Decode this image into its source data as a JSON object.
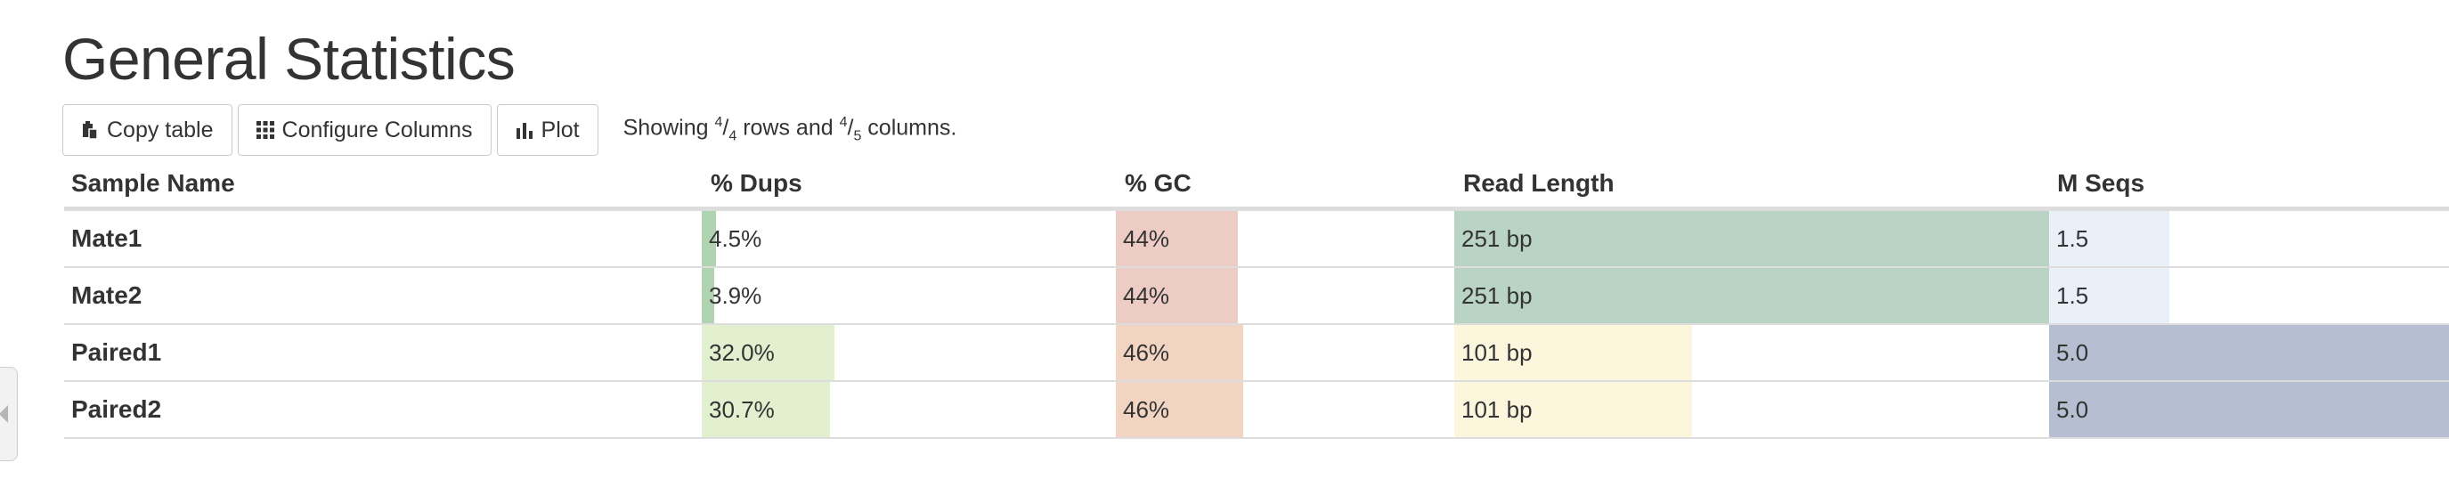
{
  "title": "General Statistics",
  "toolbar": {
    "copy_label": "Copy table",
    "configure_label": "Configure Columns",
    "plot_label": "Plot",
    "showing_prefix": "Showing ",
    "rows_num": "4",
    "rows_den": "4",
    "rows_mid": " rows and ",
    "cols_num": "4",
    "cols_den": "5",
    "cols_suffix": " columns."
  },
  "columns": {
    "sample": "Sample Name",
    "dups": "% Dups",
    "gc": "% GC",
    "readlen": "Read Length",
    "mseqs": "M Seqs"
  },
  "colors": {
    "dups": "#e2f0d0",
    "dups_small": "#b0d3b2",
    "gc_44": "#ecccc4",
    "gc_46": "#f2d4c2",
    "readlen_251": "#b9d3c5",
    "readlen_101": "#fcf7dc",
    "mseqs_15": "#e9f0f8",
    "mseqs_50": "#b5bfd1"
  },
  "rows": [
    {
      "name": "Mate1",
      "dups": "4.5%",
      "dups_frac": 0.035,
      "gc": "44%",
      "gc_frac": 0.36,
      "readlen": "251 bp",
      "readlen_frac": 1.0,
      "mseqs": "1.5",
      "mseqs_frac": 0.3
    },
    {
      "name": "Mate2",
      "dups": "3.9%",
      "dups_frac": 0.03,
      "gc": "44%",
      "gc_frac": 0.36,
      "readlen": "251 bp",
      "readlen_frac": 1.0,
      "mseqs": "1.5",
      "mseqs_frac": 0.3
    },
    {
      "name": "Paired1",
      "dups": "32.0%",
      "dups_frac": 0.32,
      "gc": "46%",
      "gc_frac": 0.375,
      "readlen": "101 bp",
      "readlen_frac": 0.4,
      "mseqs": "5.0",
      "mseqs_frac": 1.0
    },
    {
      "name": "Paired2",
      "dups": "30.7%",
      "dups_frac": 0.31,
      "gc": "46%",
      "gc_frac": 0.375,
      "readlen": "101 bp",
      "readlen_frac": 0.4,
      "mseqs": "5.0",
      "mseqs_frac": 1.0
    }
  ]
}
